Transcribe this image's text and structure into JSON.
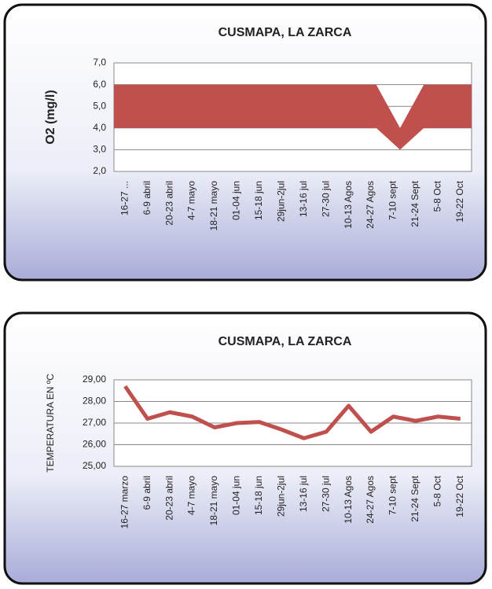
{
  "chart_data": [
    {
      "type": "area-range",
      "title": "CUSMAPA, LA ZARCA",
      "ylabel": "O2 (mg/l)",
      "categories": [
        "16-27 ...",
        "6-9 abril",
        "20-23 abril",
        "4-7 mayo",
        "18-21 mayo",
        "01-04 jun",
        "15-18 jun",
        "29jun-2jul",
        "13-16 jul",
        "27-30 jul",
        "10-13 Agos",
        "24-27 Agos",
        "7-10 sept",
        "21-24 Sept",
        "5-8 Oct",
        "19-22 Oct"
      ],
      "series": [
        {
          "color": "#c0504d",
          "values": [
            4,
            4,
            4,
            4,
            4,
            4,
            4,
            4,
            4,
            4,
            4,
            4,
            3,
            4,
            4,
            4
          ]
        },
        {
          "color": "#c0504d",
          "values": [
            6,
            6,
            6,
            6,
            6,
            6,
            6,
            6,
            6,
            6,
            6,
            6,
            4,
            6,
            6,
            6
          ]
        }
      ],
      "ylim": [
        2,
        7
      ],
      "yticks": [
        {
          "value": 2,
          "label": "2,0"
        },
        {
          "value": 3,
          "label": "3,0"
        },
        {
          "value": 4,
          "label": "4,0"
        },
        {
          "value": 5,
          "label": "5,0"
        },
        {
          "value": 6,
          "label": "6,0"
        },
        {
          "value": 7,
          "label": "7,0"
        }
      ],
      "grid": true
    },
    {
      "type": "line",
      "title": "CUSMAPA, LA ZARCA",
      "ylabel": "TEMPERATURA  EN ºC",
      "categories": [
        "16-27 marzo",
        "6-9 abril",
        "20-23 abril",
        "4-7 mayo",
        "18-21 mayo",
        "01-04 jun",
        "15-18 jun",
        "29jun-2jul",
        "13-16 jul",
        "27-30 jul",
        "10-13 Agos",
        "24-27 Agos",
        "7-10 sept",
        "21-24 Sept",
        "5-8 Oct",
        "19-22 Oct"
      ],
      "series": [
        {
          "color": "#c0504d",
          "values": [
            28.7,
            27.2,
            27.5,
            27.3,
            26.8,
            27.0,
            27.05,
            26.7,
            26.3,
            26.6,
            27.8,
            26.6,
            27.3,
            27.1,
            27.3,
            27.2
          ]
        }
      ],
      "ylim": [
        25,
        29
      ],
      "yticks": [
        {
          "value": 25,
          "label": "25,00"
        },
        {
          "value": 26,
          "label": "26,00"
        },
        {
          "value": 27,
          "label": "27,00"
        },
        {
          "value": 28,
          "label": "28,00"
        },
        {
          "value": 29,
          "label": "29,00"
        }
      ],
      "grid": true
    }
  ]
}
